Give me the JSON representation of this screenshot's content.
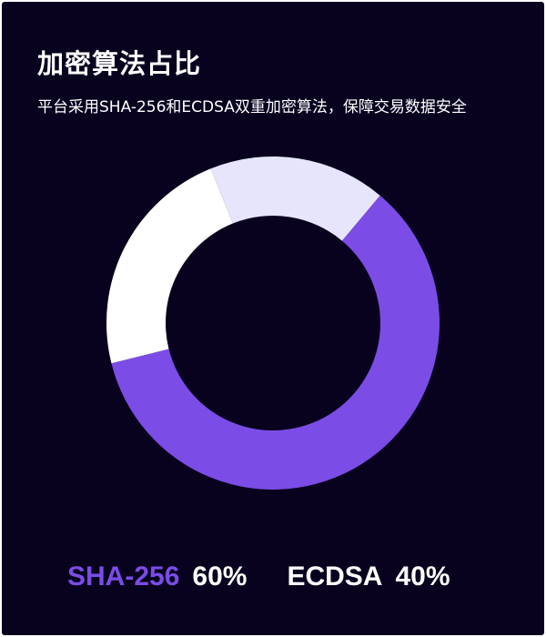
{
  "title": "加密算法占比",
  "subtitle": "平台采用SHA-256和ECDSA双重加密算法，保障交易数据安全",
  "colors": {
    "background": "#08021f",
    "sha256": "#7b4ce6",
    "ecdsa_light": "#ffffff",
    "ecdsa_tint": "#e7e5fb"
  },
  "legend": [
    {
      "name": "SHA-256",
      "value_label": "60%",
      "color": "#7b4ce6"
    },
    {
      "name": "ECDSA",
      "value_label": "40%",
      "color": "#ffffff"
    }
  ],
  "chart_data": {
    "type": "pie",
    "donut": true,
    "title": "加密算法占比",
    "slices": [
      {
        "label": "SHA-256",
        "value": 60,
        "color": "#7b4ce6"
      },
      {
        "label": "ECDSA",
        "value": 40,
        "color": "#ffffff"
      }
    ]
  }
}
